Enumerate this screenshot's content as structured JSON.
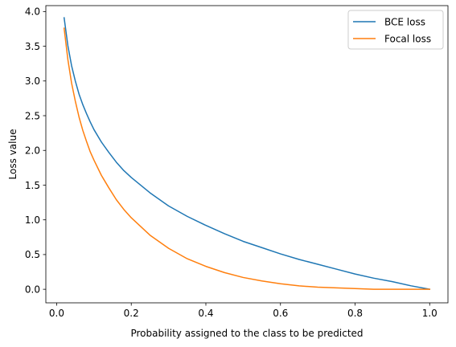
{
  "chart_data": {
    "type": "line",
    "title": "",
    "xlabel": "Probability assigned to the class to be predicted",
    "ylabel": "Loss value",
    "xlim": [
      -0.029,
      1.049
    ],
    "ylim": [
      -0.195,
      4.085
    ],
    "x_ticks": [
      "0.0",
      "0.2",
      "0.4",
      "0.6",
      "0.8",
      "1.0"
    ],
    "x_tick_values": [
      0.0,
      0.2,
      0.4,
      0.6,
      0.8,
      1.0
    ],
    "y_ticks": [
      "0.0",
      "0.5",
      "1.0",
      "1.5",
      "2.0",
      "2.5",
      "3.0",
      "3.5",
      "4.0"
    ],
    "y_tick_values": [
      0.0,
      0.5,
      1.0,
      1.5,
      2.0,
      2.5,
      3.0,
      3.5,
      4.0
    ],
    "grid": false,
    "legend_position": "top-right",
    "series": [
      {
        "name": "BCE loss",
        "color": "#1f77b4",
        "x": [
          0.02,
          0.03,
          0.04,
          0.05,
          0.06,
          0.07,
          0.08,
          0.09,
          0.1,
          0.12,
          0.14,
          0.16,
          0.18,
          0.2,
          0.25,
          0.3,
          0.35,
          0.4,
          0.45,
          0.5,
          0.55,
          0.6,
          0.65,
          0.7,
          0.75,
          0.8,
          0.85,
          0.9,
          0.95,
          1.0
        ],
        "y": [
          3.91,
          3.51,
          3.22,
          3.0,
          2.81,
          2.66,
          2.53,
          2.41,
          2.3,
          2.12,
          1.97,
          1.83,
          1.71,
          1.61,
          1.39,
          1.2,
          1.05,
          0.92,
          0.8,
          0.69,
          0.6,
          0.51,
          0.43,
          0.36,
          0.29,
          0.22,
          0.16,
          0.11,
          0.05,
          0.0
        ]
      },
      {
        "name": "Focal loss",
        "color": "#ff7f0e",
        "x": [
          0.02,
          0.03,
          0.04,
          0.05,
          0.06,
          0.07,
          0.08,
          0.09,
          0.1,
          0.12,
          0.14,
          0.16,
          0.18,
          0.2,
          0.25,
          0.3,
          0.35,
          0.4,
          0.45,
          0.5,
          0.55,
          0.6,
          0.65,
          0.7,
          0.75,
          0.8,
          0.85,
          0.9,
          0.95,
          1.0
        ],
        "y": [
          3.76,
          3.31,
          2.97,
          2.71,
          2.48,
          2.29,
          2.13,
          1.98,
          1.86,
          1.64,
          1.46,
          1.29,
          1.15,
          1.03,
          0.78,
          0.59,
          0.44,
          0.33,
          0.24,
          0.17,
          0.12,
          0.08,
          0.05,
          0.03,
          0.02,
          0.01,
          0.0,
          0.0,
          0.0,
          0.0
        ]
      }
    ]
  }
}
